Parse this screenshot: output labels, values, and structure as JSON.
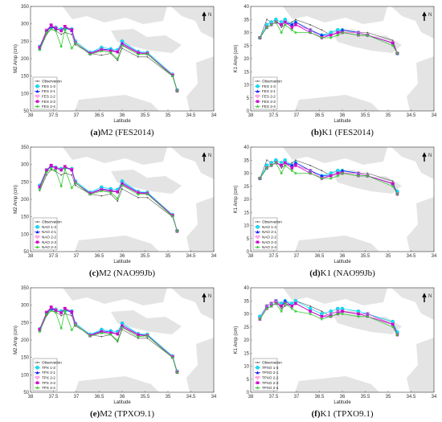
{
  "colors": {
    "Observation": "#555555",
    "s13": "#00e5ff",
    "s21": "#1a1aff",
    "s22": "#ff66cc",
    "s23": "#cc00cc",
    "s24": "#33cc33",
    "land": "#e4e4e4"
  },
  "markers": {
    "Observation": "dot",
    "s13": "circle",
    "s21": "triangle",
    "s22": "tri-down",
    "s23": "square",
    "s24": "star"
  },
  "north_label": "N",
  "chart_data": [
    {
      "type": "line",
      "id": "a",
      "caption_letter": "(a)",
      "caption_rest": "M2 (FES2014)",
      "xlabel": "Latitude",
      "ylabel": "M2 Amp (cm)",
      "xlim": [
        38,
        34
      ],
      "ylim": [
        50,
        350
      ],
      "xticks": [
        38,
        37.5,
        37,
        36.5,
        36,
        35.5,
        35,
        34.5,
        34
      ],
      "yticks": [
        50,
        100,
        150,
        200,
        250,
        300,
        350
      ],
      "legend_position": "bottom-left",
      "x": [
        37.8,
        37.65,
        37.55,
        37.45,
        37.33,
        37.25,
        37.1,
        37.02,
        36.7,
        36.45,
        36.25,
        36.1,
        36.0,
        35.65,
        35.45,
        34.9,
        34.8
      ],
      "series": [
        {
          "name": "Observation",
          "key": "Observation",
          "values": [
            225,
            270,
            285,
            280,
            270,
            275,
            270,
            240,
            215,
            210,
            215,
            195,
            230,
            205,
            205,
            150,
            110
          ]
        },
        {
          "name": "FES 1-3",
          "key": "s13",
          "values": [
            235,
            280,
            290,
            290,
            285,
            285,
            285,
            250,
            218,
            232,
            228,
            225,
            250,
            220,
            218,
            155,
            110
          ]
        },
        {
          "name": "FES 2-1",
          "key": "s21",
          "values": [
            230,
            278,
            292,
            285,
            282,
            290,
            280,
            245,
            216,
            228,
            225,
            220,
            245,
            218,
            215,
            152,
            108
          ]
        },
        {
          "name": "FES 2-2",
          "key": "s22",
          "values": [
            232,
            282,
            295,
            288,
            280,
            292,
            282,
            246,
            215,
            226,
            222,
            220,
            243,
            217,
            215,
            153,
            108
          ]
        },
        {
          "name": "FES 2-3",
          "key": "s23",
          "values": [
            232,
            280,
            297,
            287,
            280,
            293,
            283,
            245,
            214,
            225,
            222,
            219,
            240,
            216,
            214,
            152,
            107
          ]
        },
        {
          "name": "FES 2-4",
          "key": "s24",
          "values": [
            225,
            275,
            285,
            280,
            235,
            285,
            230,
            245,
            212,
            222,
            218,
            200,
            238,
            212,
            213,
            150,
            107
          ]
        }
      ]
    },
    {
      "type": "line",
      "id": "b",
      "caption_letter": "(b)",
      "caption_rest": "K1 (FES2014)",
      "xlabel": "Latitude",
      "ylabel": "K1 Amp (cm)",
      "xlim": [
        38,
        34
      ],
      "ylim": [
        0,
        40
      ],
      "xticks": [
        38,
        37.5,
        37,
        36.5,
        36,
        35.5,
        35,
        34.5,
        34
      ],
      "yticks": [
        0,
        5,
        10,
        15,
        20,
        25,
        30,
        35,
        40
      ],
      "legend_position": "bottom-left",
      "x": [
        37.8,
        37.65,
        37.55,
        37.45,
        37.33,
        37.25,
        37.1,
        37.02,
        36.7,
        36.45,
        36.25,
        36.1,
        36.0,
        35.65,
        35.45,
        34.9,
        34.8
      ],
      "series": [
        {
          "name": "Observation",
          "key": "Observation",
          "values": [
            28,
            35,
            34,
            35,
            32,
            33,
            34,
            35,
            33,
            31,
            29,
            30,
            31,
            30,
            30,
            27,
            22
          ]
        },
        {
          "name": "FES 1-3",
          "key": "s13",
          "values": [
            28,
            33,
            34,
            35,
            34,
            35,
            33,
            34,
            31,
            29,
            30,
            31,
            31,
            30,
            29,
            26,
            22
          ]
        },
        {
          "name": "FES 2-1",
          "key": "s21",
          "values": [
            28,
            32,
            33,
            34,
            33,
            34,
            33,
            34,
            31,
            29,
            29,
            30,
            31,
            30,
            29,
            26,
            22
          ]
        },
        {
          "name": "FES 2-2",
          "key": "s22",
          "values": [
            28,
            32,
            33,
            34,
            33,
            34,
            32,
            33,
            31,
            28,
            29,
            30,
            30,
            30,
            29,
            26,
            22
          ]
        },
        {
          "name": "FES 2-3",
          "key": "s23",
          "values": [
            28,
            32,
            33,
            34,
            33,
            34,
            32,
            33,
            30,
            28,
            29,
            30,
            30,
            29,
            29,
            26,
            22
          ]
        },
        {
          "name": "FES 2-4",
          "key": "s24",
          "values": [
            28,
            32,
            33,
            34,
            30,
            33,
            31,
            30,
            30,
            28,
            28,
            29,
            30,
            29,
            29,
            25,
            22
          ]
        }
      ]
    },
    {
      "type": "line",
      "id": "c",
      "caption_letter": "(c)",
      "caption_rest": "M2 (NAO99Jb)",
      "xlabel": "Latitude",
      "ylabel": "M2 Amp (cm)",
      "xlim": [
        38,
        34
      ],
      "ylim": [
        50,
        350
      ],
      "xticks": [
        38,
        37.5,
        37,
        36.5,
        36,
        35.5,
        35,
        34.5,
        34
      ],
      "yticks": [
        50,
        100,
        150,
        200,
        250,
        300,
        350
      ],
      "legend_position": "bottom-left",
      "x": [
        37.8,
        37.65,
        37.55,
        37.45,
        37.33,
        37.25,
        37.1,
        37.02,
        36.7,
        36.45,
        36.25,
        36.1,
        36.0,
        35.65,
        35.45,
        34.9,
        34.8
      ],
      "series": [
        {
          "name": "Observation",
          "key": "Observation",
          "values": [
            225,
            270,
            285,
            280,
            270,
            275,
            270,
            240,
            215,
            210,
            215,
            195,
            230,
            205,
            205,
            150,
            110
          ]
        },
        {
          "name": "NAO 1-3",
          "key": "s13",
          "values": [
            240,
            285,
            295,
            292,
            288,
            290,
            288,
            252,
            220,
            235,
            230,
            228,
            252,
            222,
            220,
            156,
            110
          ]
        },
        {
          "name": "NAO 2-1",
          "key": "s21",
          "values": [
            235,
            282,
            295,
            290,
            286,
            292,
            284,
            248,
            218,
            230,
            226,
            222,
            247,
            220,
            218,
            154,
            109
          ]
        },
        {
          "name": "NAO 2-2",
          "key": "s22",
          "values": [
            236,
            284,
            297,
            290,
            285,
            294,
            285,
            248,
            217,
            228,
            224,
            222,
            245,
            219,
            217,
            154,
            109
          ]
        },
        {
          "name": "NAO 2-3",
          "key": "s23",
          "values": [
            236,
            283,
            298,
            290,
            284,
            294,
            285,
            247,
            216,
            227,
            223,
            221,
            242,
            218,
            216,
            153,
            108
          ]
        },
        {
          "name": "NAO 2-4",
          "key": "s24",
          "values": [
            228,
            278,
            288,
            283,
            238,
            288,
            233,
            247,
            214,
            224,
            220,
            202,
            240,
            214,
            215,
            151,
            108
          ]
        }
      ]
    },
    {
      "type": "line",
      "id": "d",
      "caption_letter": "(d)",
      "caption_rest": "K1 (NAO99Jb)",
      "xlabel": "Latitude",
      "ylabel": "K1 Amp (cm)",
      "xlim": [
        38,
        34
      ],
      "ylim": [
        0,
        40
      ],
      "xticks": [
        38,
        37.5,
        37,
        36.5,
        36,
        35.5,
        35,
        34.5,
        34
      ],
      "yticks": [
        0,
        5,
        10,
        15,
        20,
        25,
        30,
        35,
        40
      ],
      "legend_position": "bottom-left",
      "x": [
        37.8,
        37.65,
        37.55,
        37.45,
        37.33,
        37.25,
        37.1,
        37.02,
        36.7,
        36.45,
        36.25,
        36.1,
        36.0,
        35.65,
        35.45,
        34.9,
        34.8
      ],
      "series": [
        {
          "name": "Observation",
          "key": "Observation",
          "values": [
            28,
            35,
            34,
            35,
            32,
            33,
            34,
            35,
            33,
            31,
            29,
            30,
            31,
            30,
            30,
            27,
            22
          ]
        },
        {
          "name": "NAO 1-3",
          "key": "s13",
          "values": [
            28,
            33,
            34,
            35,
            34,
            35,
            33,
            34,
            31,
            29,
            30,
            31,
            31,
            30,
            29,
            26,
            23
          ]
        },
        {
          "name": "NAO 2-1",
          "key": "s21",
          "values": [
            28,
            32,
            33,
            34,
            33,
            34,
            33,
            34,
            31,
            29,
            29,
            30,
            31,
            30,
            29,
            26,
            22
          ]
        },
        {
          "name": "NAO 2-2",
          "key": "s22",
          "values": [
            28,
            32,
            33,
            34,
            33,
            34,
            32,
            33,
            31,
            28,
            29,
            30,
            30,
            30,
            29,
            26,
            22
          ]
        },
        {
          "name": "NAO 2-3",
          "key": "s23",
          "values": [
            28,
            32,
            33,
            34,
            33,
            34,
            32,
            33,
            30,
            28,
            29,
            30,
            30,
            29,
            29,
            26,
            22
          ]
        },
        {
          "name": "NAO 2-4",
          "key": "s24",
          "values": [
            28,
            32,
            33,
            34,
            30,
            33,
            31,
            30,
            30,
            28,
            28,
            29,
            30,
            29,
            29,
            25,
            22
          ]
        }
      ]
    },
    {
      "type": "line",
      "id": "e",
      "caption_letter": "(e)",
      "caption_rest": "M2 (TPXO9.1)",
      "xlabel": "Latitude",
      "ylabel": "M2 Amp (cm)",
      "xlim": [
        38,
        34
      ],
      "ylim": [
        50,
        350
      ],
      "xticks": [
        38,
        37.5,
        37,
        36.5,
        36,
        35.5,
        35,
        34.5,
        34
      ],
      "yticks": [
        50,
        100,
        150,
        200,
        250,
        300,
        350
      ],
      "legend_position": "bottom-left",
      "x": [
        37.8,
        37.65,
        37.55,
        37.45,
        37.33,
        37.25,
        37.1,
        37.02,
        36.7,
        36.45,
        36.25,
        36.1,
        36.0,
        35.65,
        35.45,
        34.9,
        34.8
      ],
      "series": [
        {
          "name": "Observation",
          "key": "Observation",
          "values": [
            225,
            270,
            285,
            280,
            270,
            275,
            270,
            240,
            215,
            210,
            215,
            195,
            230,
            205,
            205,
            150,
            110
          ]
        },
        {
          "name": "TPX 1-3",
          "key": "s13",
          "values": [
            232,
            278,
            288,
            288,
            283,
            283,
            283,
            248,
            216,
            230,
            226,
            224,
            248,
            218,
            216,
            154,
            110
          ]
        },
        {
          "name": "TPX 2-1",
          "key": "s21",
          "values": [
            228,
            276,
            290,
            284,
            280,
            288,
            278,
            244,
            214,
            226,
            223,
            218,
            243,
            216,
            214,
            151,
            108
          ]
        },
        {
          "name": "TPX 2-2",
          "key": "s22",
          "values": [
            230,
            280,
            293,
            286,
            278,
            290,
            280,
            245,
            213,
            224,
            220,
            218,
            241,
            215,
            213,
            152,
            108
          ]
        },
        {
          "name": "TPX 2-3",
          "key": "s23",
          "values": [
            230,
            279,
            295,
            285,
            278,
            291,
            281,
            244,
            212,
            223,
            220,
            217,
            238,
            214,
            212,
            151,
            107
          ]
        },
        {
          "name": "TPX 2-4",
          "key": "s24",
          "values": [
            224,
            274,
            284,
            279,
            234,
            284,
            229,
            244,
            211,
            220,
            216,
            199,
            236,
            210,
            212,
            149,
            106
          ]
        }
      ]
    },
    {
      "type": "line",
      "id": "f",
      "caption_letter": "(f)",
      "caption_rest": "K1 (TPXO9.1)",
      "xlabel": "Latitude",
      "ylabel": "K1 Amp (cm)",
      "xlim": [
        38,
        34
      ],
      "ylim": [
        0,
        40
      ],
      "xticks": [
        38,
        37.5,
        37,
        36.5,
        36,
        35.5,
        35,
        34.5,
        34
      ],
      "yticks": [
        0,
        5,
        10,
        15,
        20,
        25,
        30,
        35,
        40
      ],
      "legend_position": "bottom-left",
      "x": [
        37.8,
        37.65,
        37.55,
        37.45,
        37.33,
        37.25,
        37.1,
        37.02,
        36.7,
        36.45,
        36.25,
        36.1,
        36.0,
        35.65,
        35.45,
        34.9,
        34.8
      ],
      "series": [
        {
          "name": "Observation",
          "key": "Observation",
          "values": [
            28,
            33,
            34,
            35,
            32,
            33,
            34,
            35,
            33,
            31,
            29,
            30,
            31,
            30,
            30,
            27,
            22
          ]
        },
        {
          "name": "TPXO 1-3",
          "key": "s13",
          "values": [
            29,
            33,
            34,
            35,
            34,
            35,
            34,
            35,
            32,
            30,
            31,
            32,
            32,
            31,
            30,
            27,
            23
          ]
        },
        {
          "name": "TPXO 2-1",
          "key": "s21",
          "values": [
            28,
            33,
            34,
            35,
            33,
            35,
            33,
            34,
            31,
            29,
            30,
            31,
            31,
            30,
            30,
            26,
            22
          ]
        },
        {
          "name": "TPXO 2-2",
          "key": "s22",
          "values": [
            28,
            33,
            34,
            35,
            33,
            34,
            33,
            34,
            31,
            29,
            30,
            31,
            31,
            30,
            30,
            26,
            22
          ]
        },
        {
          "name": "TPXO 2-3",
          "key": "s23",
          "values": [
            28,
            32,
            33,
            34,
            33,
            34,
            33,
            34,
            31,
            29,
            29,
            30,
            31,
            30,
            29,
            26,
            22
          ]
        },
        {
          "name": "TPXO 2-4",
          "key": "s24",
          "values": [
            28,
            32,
            33,
            34,
            31,
            34,
            32,
            31,
            30,
            28,
            29,
            30,
            30,
            29,
            29,
            25,
            22
          ]
        }
      ]
    }
  ]
}
